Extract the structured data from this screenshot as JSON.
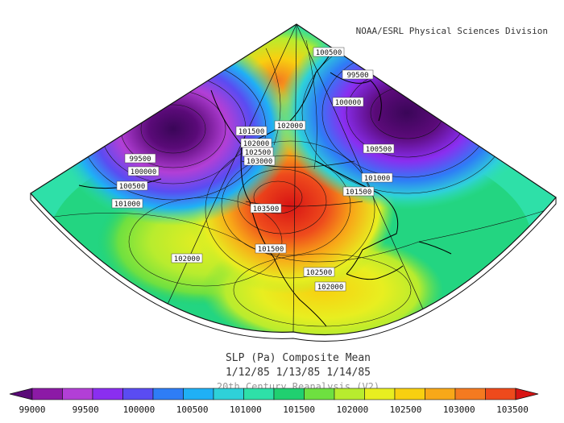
{
  "credit": "NOAA/ESRL Physical Sciences Division",
  "title": "SLP (Pa) Composite Mean",
  "dates": "1/12/85 1/13/85 1/14/85",
  "subtitle": "20th Century Reanalysis (V2)",
  "colorbar": {
    "ticks": [
      "99000",
      "99500",
      "100000",
      "100500",
      "101000",
      "101500",
      "102000",
      "102500",
      "103000",
      "103500"
    ],
    "colors": [
      "#5a0a78",
      "#8c1aa6",
      "#b23fd6",
      "#8a2ef0",
      "#5a4cf2",
      "#2e7df6",
      "#1fb0f5",
      "#2ed1d9",
      "#2ee0a8",
      "#20d070",
      "#6ee040",
      "#b8ec2e",
      "#e8ee20",
      "#f8d010",
      "#f8a818",
      "#f47a20",
      "#ee4a1c",
      "#d81414"
    ]
  },
  "contour_labels": [
    {
      "text": "100500"
    },
    {
      "text": "99500"
    },
    {
      "text": "100000"
    },
    {
      "text": "100500"
    },
    {
      "text": "101000"
    },
    {
      "text": "101500"
    },
    {
      "text": "102000"
    },
    {
      "text": "101500"
    },
    {
      "text": "102000"
    },
    {
      "text": "102500"
    },
    {
      "text": "103000"
    },
    {
      "text": "99500"
    },
    {
      "text": "100000"
    },
    {
      "text": "100500"
    },
    {
      "text": "101000"
    },
    {
      "text": "103500"
    },
    {
      "text": "102000"
    },
    {
      "text": "101500"
    },
    {
      "text": "102500"
    },
    {
      "text": "102000"
    }
  ]
}
